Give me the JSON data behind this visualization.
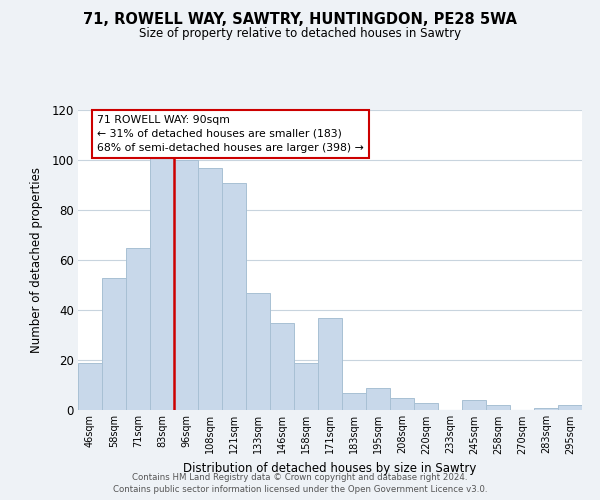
{
  "title": "71, ROWELL WAY, SAWTRY, HUNTINGDON, PE28 5WA",
  "subtitle": "Size of property relative to detached houses in Sawtry",
  "xlabel": "Distribution of detached houses by size in Sawtry",
  "ylabel": "Number of detached properties",
  "bar_labels": [
    "46sqm",
    "58sqm",
    "71sqm",
    "83sqm",
    "96sqm",
    "108sqm",
    "121sqm",
    "133sqm",
    "146sqm",
    "158sqm",
    "171sqm",
    "183sqm",
    "195sqm",
    "208sqm",
    "220sqm",
    "233sqm",
    "245sqm",
    "258sqm",
    "270sqm",
    "283sqm",
    "295sqm"
  ],
  "bar_values": [
    19,
    53,
    65,
    101,
    100,
    97,
    91,
    47,
    35,
    19,
    37,
    7,
    9,
    5,
    3,
    0,
    4,
    2,
    0,
    1,
    2
  ],
  "bar_color": "#c8d8ea",
  "bar_edgecolor": "#a8c0d4",
  "vline_color": "#cc0000",
  "ylim": [
    0,
    120
  ],
  "yticks": [
    0,
    20,
    40,
    60,
    80,
    100,
    120
  ],
  "annotation_title": "71 ROWELL WAY: 90sqm",
  "annotation_line1": "← 31% of detached houses are smaller (183)",
  "annotation_line2": "68% of semi-detached houses are larger (398) →",
  "annotation_box_facecolor": "#ffffff",
  "annotation_box_edgecolor": "#cc0000",
  "footer1": "Contains HM Land Registry data © Crown copyright and database right 2024.",
  "footer2": "Contains public sector information licensed under the Open Government Licence v3.0.",
  "background_color": "#eef2f6",
  "plot_background_color": "#ffffff",
  "grid_color": "#c8d4de"
}
